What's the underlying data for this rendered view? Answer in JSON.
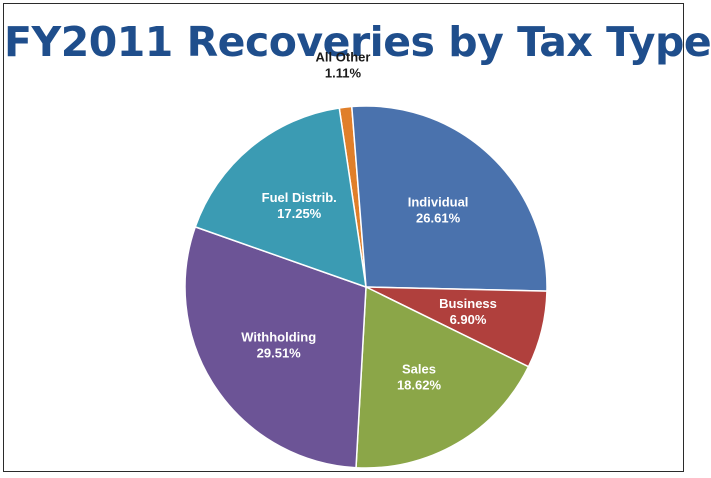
{
  "slide": {
    "title": "FY2011 Recoveries by Tax Type"
  },
  "chart_data": {
    "type": "pie",
    "title": "FY2011 Recoveries by Tax Type",
    "slices": [
      {
        "name": "All Other",
        "value": 1.11,
        "label": "1.11%",
        "color": "#e07f2a",
        "text_color": "#1a1a1a",
        "label_outside": true
      },
      {
        "name": "Individual",
        "value": 26.61,
        "label": "26.61%",
        "color": "#4a72ad",
        "text_color": "#ffffff"
      },
      {
        "name": "Business",
        "value": 6.9,
        "label": "6.90%",
        "color": "#b0403d",
        "text_color": "#ffffff"
      },
      {
        "name": "Sales",
        "value": 18.62,
        "label": "18.62%",
        "color": "#8ba648",
        "text_color": "#ffffff"
      },
      {
        "name": "Withholding",
        "value": 29.51,
        "label": "29.51%",
        "color": "#6c5496",
        "text_color": "#ffffff"
      },
      {
        "name": "Fuel Distrib.",
        "value": 17.25,
        "label": "17.25%",
        "color": "#3b9bb3",
        "text_color": "#ffffff"
      }
    ],
    "start_angle_deg": -8.5,
    "direction": "clockwise",
    "legend": "none"
  }
}
